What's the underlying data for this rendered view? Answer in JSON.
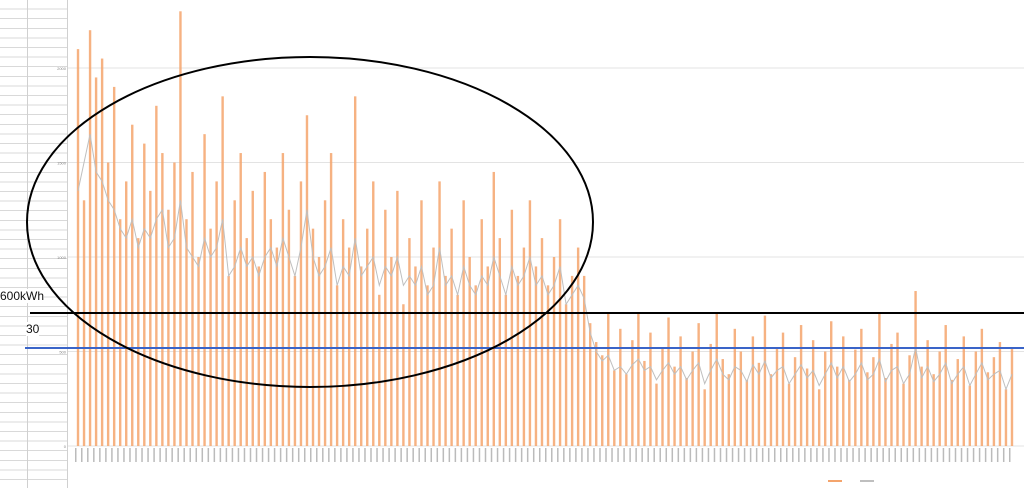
{
  "chart_data": {
    "type": "bar",
    "ylim": [
      0,
      2350
    ],
    "yticks": [
      0,
      500,
      1000,
      1500,
      2000
    ],
    "grid": true,
    "legend_placement": "bottom",
    "series": [
      {
        "type": "bar",
        "color": "#f4a46c",
        "values": [
          2100,
          1300,
          2200,
          1950,
          2050,
          1500,
          1900,
          1200,
          1400,
          1700,
          1100,
          1600,
          1350,
          1800,
          1550,
          1250,
          1500,
          2300,
          1200,
          1450,
          1000,
          1650,
          1150,
          1400,
          1850,
          900,
          1300,
          1550,
          1100,
          1350,
          950,
          1450,
          1200,
          1050,
          1550,
          1250,
          900,
          1400,
          1750,
          1150,
          1000,
          1300,
          1550,
          850,
          1200,
          1050,
          1850,
          950,
          1150,
          1400,
          800,
          1250,
          1000,
          1350,
          750,
          1100,
          950,
          1300,
          850,
          1050,
          1400,
          900,
          1150,
          800,
          1300,
          1000,
          850,
          1200,
          950,
          1450,
          1100,
          800,
          1250,
          900,
          1050,
          1300,
          950,
          1100,
          850,
          1000,
          1200,
          750,
          900,
          1050,
          900,
          650,
          550,
          480,
          700,
          400,
          620,
          380,
          560,
          700,
          450,
          600,
          330,
          520,
          680,
          420,
          580,
          360,
          500,
          650,
          300,
          540,
          700,
          460,
          380,
          620,
          500,
          350,
          580,
          440,
          690,
          380,
          520,
          600,
          330,
          470,
          640,
          410,
          560,
          300,
          500,
          660,
          420,
          580,
          350,
          510,
          620,
          390,
          470,
          700,
          360,
          540,
          600,
          330,
          480,
          820,
          420,
          560,
          380,
          500,
          640,
          350,
          460,
          580,
          320,
          500,
          620,
          390,
          470,
          550,
          300,
          520
        ],
        "name": ""
      },
      {
        "type": "line",
        "color": "#bfbfbf",
        "values": [
          1350,
          1500,
          1650,
          1450,
          1400,
          1300,
          1250,
          1150,
          1100,
          1200,
          1050,
          1150,
          1100,
          1200,
          1250,
          1050,
          1100,
          1300,
          1050,
          1000,
          950,
          1100,
          1000,
          1050,
          1200,
          900,
          950,
          1050,
          950,
          1000,
          900,
          1000,
          1050,
          950,
          1100,
          1000,
          900,
          1050,
          1250,
          1000,
          900,
          950,
          1050,
          850,
          950,
          900,
          1100,
          900,
          950,
          1000,
          850,
          950,
          900,
          1000,
          850,
          900,
          850,
          950,
          800,
          850,
          1050,
          850,
          900,
          800,
          950,
          850,
          800,
          900,
          850,
          1000,
          900,
          800,
          950,
          850,
          900,
          1000,
          850,
          900,
          800,
          850,
          950,
          750,
          800,
          850,
          780,
          600,
          500,
          450,
          480,
          400,
          420,
          380,
          430,
          460,
          400,
          420,
          350,
          400,
          440,
          380,
          420,
          350,
          400,
          440,
          330,
          400,
          460,
          380,
          350,
          420,
          400,
          340,
          430,
          380,
          450,
          360,
          400,
          420,
          330,
          380,
          430,
          360,
          400,
          320,
          380,
          440,
          360,
          420,
          340,
          380,
          440,
          350,
          380,
          460,
          340,
          400,
          420,
          330,
          380,
          520,
          360,
          420,
          340,
          380,
          440,
          330,
          380,
          420,
          320,
          380,
          440,
          350,
          380,
          400,
          300,
          380
        ],
        "name": ""
      }
    ]
  },
  "annotations": {
    "threshold_label": "600kWh",
    "value_label": "30"
  }
}
